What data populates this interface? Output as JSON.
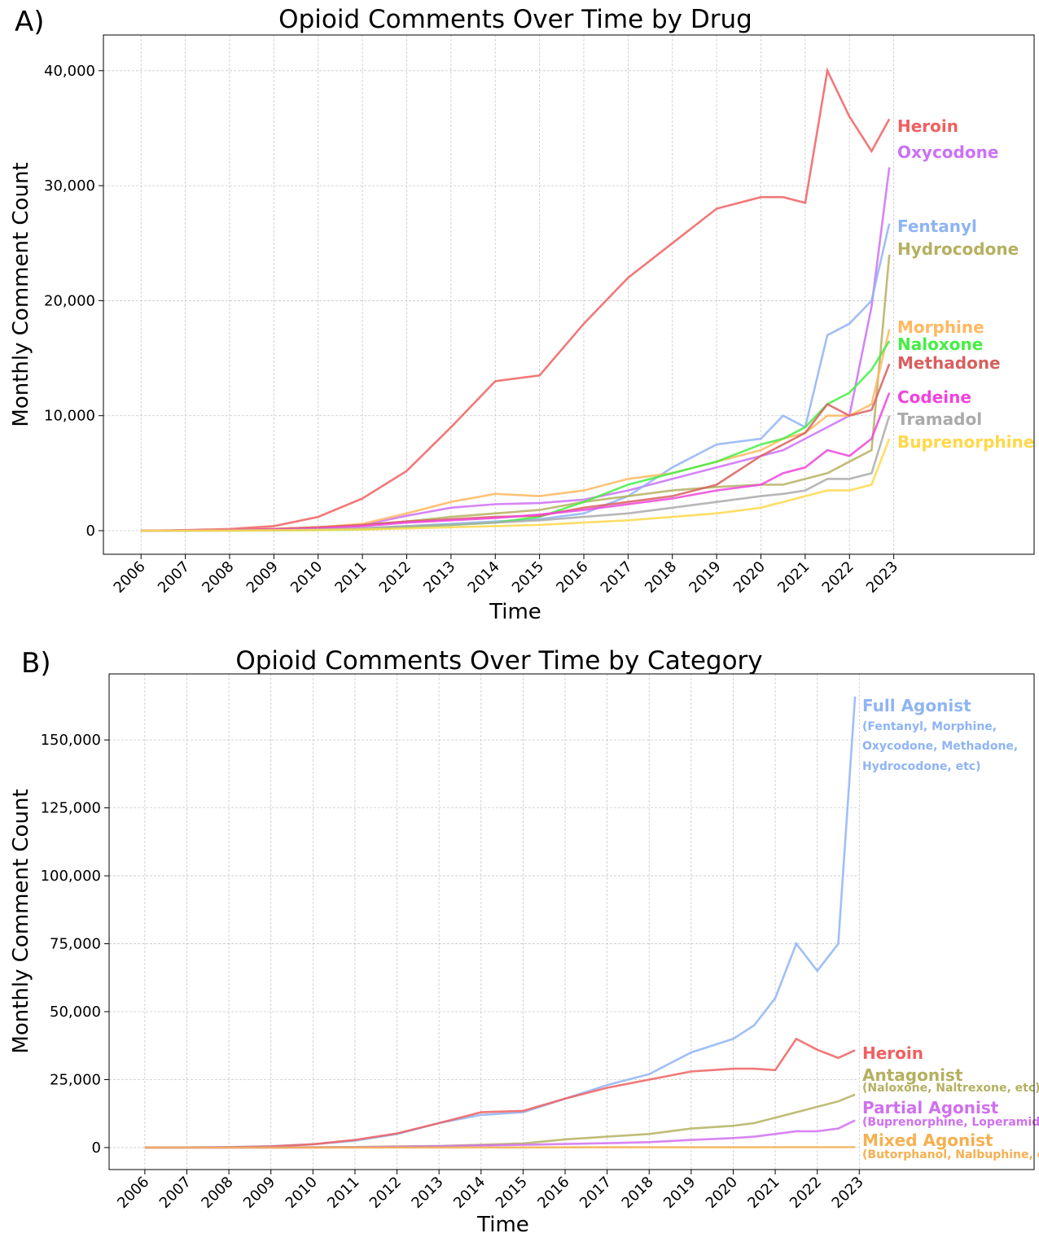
{
  "chart_data": [
    {
      "type": "line",
      "panel_label": "A)",
      "title": "Opioid Comments Over Time by Drug",
      "xlabel": "Time",
      "ylabel": "Monthly Comment Count",
      "x": [
        2006,
        2007,
        2008,
        2009,
        2010,
        2011,
        2012,
        2013,
        2014,
        2015,
        2016,
        2017,
        2018,
        2019,
        2020,
        2020.5,
        2021,
        2021.5,
        2022,
        2022.5,
        2022.9
      ],
      "xlim": [
        2005.15,
        2026.17
      ],
      "xticks": [
        2006,
        2007,
        2008,
        2009,
        2010,
        2011,
        2012,
        2013,
        2014,
        2015,
        2016,
        2017,
        2018,
        2019,
        2020,
        2021,
        2022,
        2023
      ],
      "ylim": [
        -2050,
        43100
      ],
      "yticks": [
        0,
        {
          "value": 10000,
          "label": "10,000"
        },
        {
          "value": 20000,
          "label": "20,000"
        },
        {
          "value": 30000,
          "label": "30,000"
        },
        {
          "value": 40000,
          "label": "40,000"
        }
      ],
      "grid": true,
      "series": [
        {
          "name": "Heroin",
          "color": "#f06060",
          "values": [
            0,
            50,
            150,
            400,
            1200,
            2800,
            5200,
            9000,
            13000,
            13500,
            18000,
            22000,
            25000,
            28000,
            29000,
            29000,
            28500,
            40000,
            36000,
            33000,
            35800
          ]
        },
        {
          "name": "Oxycodone",
          "color": "#cc70f5",
          "values": [
            0,
            20,
            60,
            150,
            300,
            500,
            1300,
            2000,
            2300,
            2400,
            2700,
            3500,
            4500,
            5500,
            6500,
            7000,
            8000,
            9000,
            10000,
            19500,
            31600
          ]
        },
        {
          "name": "Fentanyl",
          "color": "#8fb4f5",
          "values": [
            0,
            0,
            20,
            50,
            100,
            200,
            400,
            600,
            800,
            1000,
            1500,
            3000,
            5500,
            7500,
            8000,
            10000,
            9000,
            17000,
            18000,
            20000,
            26700
          ]
        },
        {
          "name": "Hydrocodone",
          "color": "#b5b060",
          "values": [
            0,
            20,
            60,
            150,
            300,
            500,
            800,
            1200,
            1500,
            1800,
            2500,
            3000,
            3500,
            3800,
            4000,
            4000,
            4500,
            5000,
            6000,
            7000,
            24000
          ]
        },
        {
          "name": "Morphine",
          "color": "#ffb860",
          "values": [
            0,
            30,
            80,
            150,
            300,
            600,
            1500,
            2500,
            3200,
            3000,
            3500,
            4500,
            5000,
            6000,
            7000,
            8000,
            8500,
            10000,
            10000,
            11000,
            17500
          ]
        },
        {
          "name": "Naloxone",
          "color": "#44ee44",
          "values": [
            0,
            0,
            0,
            20,
            50,
            100,
            300,
            500,
            700,
            1200,
            2500,
            4000,
            5000,
            6000,
            7500,
            8000,
            9000,
            11000,
            12000,
            14000,
            16500
          ]
        },
        {
          "name": "Methadone",
          "color": "#d95f5f",
          "values": [
            0,
            20,
            60,
            150,
            300,
            500,
            800,
            1000,
            1200,
            1300,
            2000,
            2500,
            3000,
            4000,
            6500,
            7500,
            8500,
            11000,
            10000,
            10500,
            14500
          ]
        },
        {
          "name": "Codeine",
          "color": "#ee44dd",
          "values": [
            0,
            20,
            50,
            100,
            200,
            400,
            700,
            900,
            1100,
            1400,
            1800,
            2300,
            2800,
            3500,
            4000,
            5000,
            5500,
            7000,
            6500,
            8000,
            12000
          ]
        },
        {
          "name": "Tramadol",
          "color": "#aaaaaa",
          "values": [
            0,
            0,
            20,
            50,
            100,
            200,
            400,
            500,
            700,
            900,
            1200,
            1500,
            2000,
            2500,
            3000,
            3200,
            3500,
            4500,
            4500,
            5000,
            10000
          ]
        },
        {
          "name": "Buprenorphine",
          "color": "#ffd84a",
          "values": [
            0,
            0,
            10,
            30,
            60,
            100,
            200,
            300,
            400,
            500,
            700,
            900,
            1200,
            1500,
            2000,
            2500,
            3000,
            3500,
            3500,
            4000,
            8000
          ]
        }
      ]
    },
    {
      "type": "line",
      "panel_label": "B)",
      "title": "Opioid Comments Over Time by Category",
      "xlabel": "Time",
      "ylabel": "Monthly Comment Count",
      "x": [
        2006,
        2007,
        2008,
        2009,
        2010,
        2011,
        2012,
        2013,
        2014,
        2015,
        2016,
        2017,
        2018,
        2019,
        2020,
        2020.5,
        2021,
        2021.5,
        2022,
        2022.5,
        2022.9
      ],
      "xlim": [
        2005.15,
        2027.16
      ],
      "xticks": [
        2006,
        2007,
        2008,
        2009,
        2010,
        2011,
        2012,
        2013,
        2014,
        2015,
        2016,
        2017,
        2018,
        2019,
        2020,
        2021,
        2022,
        2023
      ],
      "ylim": [
        -8100,
        174300
      ],
      "yticks": [
        0,
        {
          "value": 25000,
          "label": "25,000"
        },
        {
          "value": 50000,
          "label": "50,000"
        },
        {
          "value": 75000,
          "label": "75,000"
        },
        {
          "value": 100000,
          "label": "100,000"
        },
        {
          "value": 125000,
          "label": "125,000"
        },
        {
          "value": 150000,
          "label": "150,000"
        }
      ],
      "grid": true,
      "series": [
        {
          "name": "Full Agonist",
          "color": "#8fb4f5",
          "description": [
            "(Fentanyl, Morphine,",
            "Oxycodone, Methadone,",
            "Hydrocodone, etc)"
          ],
          "values": [
            0,
            50,
            200,
            500,
            1200,
            2500,
            5000,
            9000,
            12000,
            13000,
            18000,
            23000,
            27000,
            35000,
            40000,
            45000,
            55000,
            75000,
            65000,
            75000,
            166000
          ]
        },
        {
          "name": "Heroin",
          "color": "#f06060",
          "values": [
            0,
            50,
            150,
            400,
            1200,
            2800,
            5200,
            9000,
            13000,
            13500,
            18000,
            22000,
            25000,
            28000,
            29000,
            29000,
            28500,
            40000,
            36000,
            33000,
            35800
          ]
        },
        {
          "name": "Antagonist",
          "color": "#b5b060",
          "description": [
            "(Naloxone, Naltrexone, etc)"
          ],
          "values": [
            0,
            0,
            20,
            50,
            100,
            200,
            400,
            600,
            1000,
            1500,
            3000,
            4000,
            5000,
            7000,
            8000,
            9000,
            11000,
            13000,
            15000,
            17000,
            19500
          ]
        },
        {
          "name": "Partial Agonist",
          "color": "#d070f0",
          "description": [
            "(Buprenorphine, Loperamide)"
          ],
          "values": [
            0,
            0,
            10,
            30,
            60,
            100,
            300,
            500,
            800,
            1000,
            1300,
            1600,
            2000,
            2800,
            3500,
            4000,
            5000,
            6000,
            6000,
            7000,
            10000
          ]
        },
        {
          "name": "Mixed Agonist",
          "color": "#f5b050",
          "description": [
            "(Butorphanol, Nalbuphine, etc)"
          ],
          "values": [
            0,
            0,
            0,
            0,
            0,
            10,
            20,
            30,
            50,
            60,
            80,
            100,
            100,
            120,
            120,
            120,
            130,
            130,
            130,
            130,
            140
          ]
        }
      ]
    }
  ]
}
